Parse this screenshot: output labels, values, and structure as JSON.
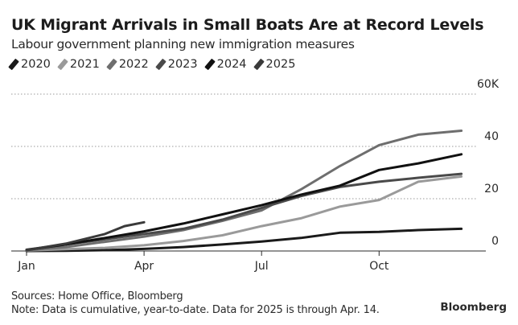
{
  "title": "UK Migrant Arrivals in Small Boats Are at Record Levels",
  "subtitle": "Labour government planning new immigration measures",
  "footer": {
    "sources": "Sources: Home Office, Bloomberg",
    "note": "Note: Data is cumulative, year-to-date. Data for 2025 is through Apr. 14."
  },
  "brand": "Bloomberg",
  "chart_data": {
    "type": "line",
    "title": "UK Migrant Arrivals in Small Boats Are at Record Levels",
    "subtitle": "Labour government planning new immigration measures",
    "xlabel": "",
    "ylabel": "",
    "x_unit": "month index (0 = Jan 1)",
    "x_ticks": [
      {
        "value": 0,
        "label": "Jan"
      },
      {
        "value": 3,
        "label": "Apr"
      },
      {
        "value": 6,
        "label": "Jul"
      },
      {
        "value": 9,
        "label": "Oct"
      }
    ],
    "y_ticks": [
      {
        "value": 0,
        "label": "0"
      },
      {
        "value": 20000,
        "label": "20"
      },
      {
        "value": 40000,
        "label": "40"
      },
      {
        "value": 60000,
        "label": "60K"
      }
    ],
    "ylim": [
      0,
      60000
    ],
    "xlim": [
      -0.2,
      12.3
    ],
    "grid": "horizontal dotted",
    "legend": "top-left",
    "series": [
      {
        "name": "2020",
        "color": "#1a1a1a",
        "x": [
          0,
          1,
          2,
          3,
          4,
          5,
          6,
          7,
          8,
          9,
          10,
          11.1
        ],
        "values": [
          0,
          100,
          300,
          800,
          1500,
          2500,
          3600,
          5000,
          7000,
          7300,
          8000,
          8500
        ]
      },
      {
        "name": "2021",
        "color": "#9a9a9a",
        "x": [
          0,
          1,
          2,
          3,
          4,
          5,
          6,
          7,
          8,
          9,
          10,
          11.1
        ],
        "values": [
          200,
          700,
          1200,
          2200,
          3800,
          6000,
          9500,
          12500,
          17000,
          19500,
          26500,
          28500
        ]
      },
      {
        "name": "2022",
        "color": "#6e6e6e",
        "x": [
          0,
          1,
          2,
          3,
          4,
          5,
          6,
          7,
          8,
          9,
          10,
          11.1
        ],
        "values": [
          300,
          1500,
          3500,
          5500,
          8000,
          11500,
          15500,
          23500,
          32500,
          40500,
          44500,
          46000
        ]
      },
      {
        "name": "2023",
        "color": "#4a4a4a",
        "x": [
          0,
          1,
          2,
          3,
          4,
          5,
          6,
          7,
          8,
          9,
          10,
          11.1
        ],
        "values": [
          500,
          2500,
          4500,
          6500,
          8500,
          12000,
          16500,
          21000,
          24500,
          26500,
          28000,
          29500
        ]
      },
      {
        "name": "2024",
        "color": "#111111",
        "x": [
          0,
          1,
          2,
          3,
          4,
          5,
          6,
          7,
          8,
          9,
          10,
          11.1
        ],
        "values": [
          400,
          2500,
          5000,
          7500,
          10500,
          14000,
          17500,
          21500,
          25000,
          31000,
          33500,
          37000
        ]
      },
      {
        "name": "2025",
        "color": "#3a3a3a",
        "x": [
          0,
          1,
          2,
          2.5,
          3
        ],
        "values": [
          300,
          2800,
          6500,
          9500,
          11000
        ]
      }
    ]
  }
}
